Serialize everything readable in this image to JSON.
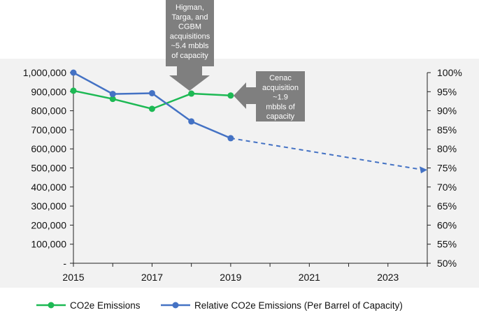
{
  "chart_data": {
    "type": "line",
    "x": [
      2015,
      2016,
      2017,
      2018,
      2019
    ],
    "xlim": [
      2015,
      2024
    ],
    "x_ticks": [
      "2015",
      "2017",
      "2019",
      "2021",
      "2023"
    ],
    "y_left": {
      "ylim": [
        0,
        1000000
      ],
      "ticks": [
        "-",
        "100,000",
        "200,000",
        "300,000",
        "400,000",
        "500,000",
        "600,000",
        "700,000",
        "800,000",
        "900,000",
        "1,000,000"
      ]
    },
    "y_right": {
      "ylim": [
        50,
        100
      ],
      "ticks": [
        "50%",
        "55%",
        "60%",
        "65%",
        "70%",
        "75%",
        "80%",
        "85%",
        "90%",
        "95%",
        "100%"
      ]
    },
    "series": [
      {
        "name": "CO2e Emissions",
        "axis": "left",
        "color": "#1db954",
        "values": [
          905000,
          862000,
          810000,
          890000,
          880000
        ]
      },
      {
        "name": "Relative CO2e Emissions (Per Barrel of Capacity)",
        "axis": "right",
        "color": "#4472c4",
        "values": [
          100,
          94.4,
          94.6,
          87.2,
          82.8
        ],
        "projection": {
          "from": [
            2019,
            82.8
          ],
          "to": [
            2024,
            74.5
          ],
          "style": "dashed"
        }
      }
    ],
    "annotations": [
      {
        "id": "higman",
        "lines": [
          "Higman,",
          "Targa, and",
          "CGBM",
          "acquisitions",
          "~5.4 mbbls",
          "of capacity"
        ],
        "points_to": "2018"
      },
      {
        "id": "cenac",
        "lines": [
          "Cenac",
          "acquisition",
          "~1.9",
          "mbbls of",
          "capacity"
        ],
        "points_to": "2019"
      }
    ],
    "legend_position": "bottom",
    "colors": {
      "plot_bg": "#f2f2f2",
      "callout": "#7f7f7f",
      "axis": "#222222"
    }
  }
}
